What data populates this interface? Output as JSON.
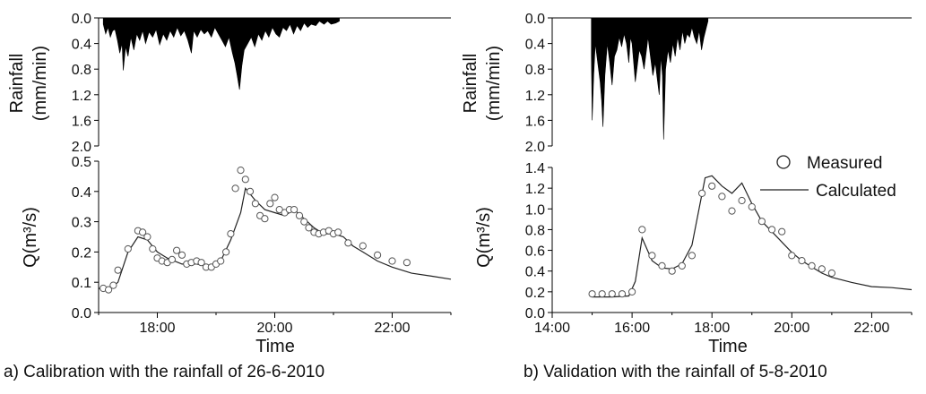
{
  "chart_data": [
    {
      "id": "a",
      "type": "hydrograph",
      "caption": "a) Calibration with the rainfall of 26-6-2010",
      "rainfall": {
        "ylabel_line1": "Rainfall",
        "ylabel_line2": "(mm/min)",
        "ylim": [
          2.0,
          0.0
        ],
        "yticks": [
          "0.0",
          "0.4",
          "0.8",
          "1.2",
          "1.6",
          "2.0"
        ],
        "series": [
          [
            17.08,
            0.1
          ],
          [
            17.12,
            0.25
          ],
          [
            17.16,
            0.15
          ],
          [
            17.2,
            0.3
          ],
          [
            17.24,
            0.2
          ],
          [
            17.28,
            0.18
          ],
          [
            17.32,
            0.35
          ],
          [
            17.36,
            0.55
          ],
          [
            17.4,
            0.4
          ],
          [
            17.42,
            0.82
          ],
          [
            17.46,
            0.45
          ],
          [
            17.5,
            0.6
          ],
          [
            17.55,
            0.3
          ],
          [
            17.6,
            0.5
          ],
          [
            17.65,
            0.25
          ],
          [
            17.7,
            0.35
          ],
          [
            17.75,
            0.2
          ],
          [
            17.8,
            0.4
          ],
          [
            17.86,
            0.22
          ],
          [
            17.92,
            0.3
          ],
          [
            17.98,
            0.18
          ],
          [
            18.04,
            0.42
          ],
          [
            18.1,
            0.25
          ],
          [
            18.16,
            0.35
          ],
          [
            18.22,
            0.2
          ],
          [
            18.28,
            0.3
          ],
          [
            18.34,
            0.15
          ],
          [
            18.4,
            0.28
          ],
          [
            18.46,
            0.2
          ],
          [
            18.52,
            0.35
          ],
          [
            18.58,
            0.55
          ],
          [
            18.62,
            0.2
          ],
          [
            18.68,
            0.3
          ],
          [
            18.74,
            0.18
          ],
          [
            18.8,
            0.25
          ],
          [
            18.86,
            0.2
          ],
          [
            18.92,
            0.3
          ],
          [
            18.98,
            0.15
          ],
          [
            19.04,
            0.25
          ],
          [
            19.1,
            0.35
          ],
          [
            19.16,
            0.45
          ],
          [
            19.22,
            0.3
          ],
          [
            19.28,
            0.55
          ],
          [
            19.32,
            0.7
          ],
          [
            19.36,
            0.9
          ],
          [
            19.4,
            1.12
          ],
          [
            19.44,
            0.75
          ],
          [
            19.48,
            0.5
          ],
          [
            19.54,
            0.4
          ],
          [
            19.6,
            0.3
          ],
          [
            19.66,
            0.45
          ],
          [
            19.72,
            0.25
          ],
          [
            19.78,
            0.35
          ],
          [
            19.84,
            0.2
          ],
          [
            19.9,
            0.3
          ],
          [
            19.96,
            0.15
          ],
          [
            20.02,
            0.25
          ],
          [
            20.08,
            0.3
          ],
          [
            20.14,
            0.15
          ],
          [
            20.2,
            0.2
          ],
          [
            20.26,
            0.1
          ],
          [
            20.32,
            0.25
          ],
          [
            20.38,
            0.12
          ],
          [
            20.44,
            0.2
          ],
          [
            20.5,
            0.08
          ],
          [
            20.56,
            0.15
          ],
          [
            20.62,
            0.1
          ],
          [
            20.7,
            0.12
          ],
          [
            20.76,
            0.05
          ],
          [
            20.84,
            0.1
          ],
          [
            20.9,
            0.05
          ],
          [
            20.96,
            0.1
          ],
          [
            21.04,
            0.08
          ],
          [
            21.1,
            0.05
          ]
        ]
      },
      "flow": {
        "ylabel": "Q(m³/s)",
        "xlabel": "Time",
        "xlim": [
          17.0,
          23.0
        ],
        "ylim": [
          0.0,
          0.5
        ],
        "xticks": [
          {
            "v": 18,
            "label": "18:00"
          },
          {
            "v": 20,
            "label": "20:00"
          },
          {
            "v": 22,
            "label": "22:00"
          }
        ],
        "yticks": [
          "0.0",
          "0.1",
          "0.2",
          "0.3",
          "0.4",
          "0.5"
        ],
        "measured": [
          [
            17.08,
            0.08
          ],
          [
            17.17,
            0.075
          ],
          [
            17.25,
            0.09
          ],
          [
            17.33,
            0.14
          ],
          [
            17.5,
            0.21
          ],
          [
            17.67,
            0.27
          ],
          [
            17.75,
            0.265
          ],
          [
            17.83,
            0.25
          ],
          [
            17.92,
            0.21
          ],
          [
            18.0,
            0.18
          ],
          [
            18.08,
            0.17
          ],
          [
            18.17,
            0.165
          ],
          [
            18.25,
            0.175
          ],
          [
            18.33,
            0.205
          ],
          [
            18.42,
            0.19
          ],
          [
            18.5,
            0.16
          ],
          [
            18.58,
            0.165
          ],
          [
            18.67,
            0.17
          ],
          [
            18.75,
            0.165
          ],
          [
            18.83,
            0.15
          ],
          [
            18.92,
            0.15
          ],
          [
            19.0,
            0.16
          ],
          [
            19.08,
            0.17
          ],
          [
            19.17,
            0.2
          ],
          [
            19.25,
            0.26
          ],
          [
            19.33,
            0.41
          ],
          [
            19.42,
            0.47
          ],
          [
            19.5,
            0.44
          ],
          [
            19.58,
            0.4
          ],
          [
            19.67,
            0.36
          ],
          [
            19.75,
            0.32
          ],
          [
            19.83,
            0.31
          ],
          [
            19.92,
            0.36
          ],
          [
            20.0,
            0.38
          ],
          [
            20.08,
            0.34
          ],
          [
            20.17,
            0.33
          ],
          [
            20.25,
            0.34
          ],
          [
            20.33,
            0.34
          ],
          [
            20.42,
            0.32
          ],
          [
            20.5,
            0.3
          ],
          [
            20.58,
            0.28
          ],
          [
            20.67,
            0.265
          ],
          [
            20.75,
            0.26
          ],
          [
            20.83,
            0.265
          ],
          [
            20.92,
            0.27
          ],
          [
            21.0,
            0.26
          ],
          [
            21.08,
            0.265
          ],
          [
            21.25,
            0.23
          ],
          [
            21.5,
            0.22
          ],
          [
            21.75,
            0.19
          ],
          [
            22.0,
            0.17
          ],
          [
            22.25,
            0.165
          ]
        ],
        "calculated": [
          [
            17.0,
            0.08
          ],
          [
            17.17,
            0.075
          ],
          [
            17.33,
            0.1
          ],
          [
            17.5,
            0.2
          ],
          [
            17.67,
            0.25
          ],
          [
            17.83,
            0.24
          ],
          [
            18.0,
            0.2
          ],
          [
            18.17,
            0.18
          ],
          [
            18.42,
            0.16
          ],
          [
            18.67,
            0.16
          ],
          [
            18.92,
            0.15
          ],
          [
            19.08,
            0.17
          ],
          [
            19.25,
            0.24
          ],
          [
            19.42,
            0.33
          ],
          [
            19.5,
            0.41
          ],
          [
            19.67,
            0.37
          ],
          [
            19.83,
            0.34
          ],
          [
            20.0,
            0.33
          ],
          [
            20.17,
            0.32
          ],
          [
            20.33,
            0.34
          ],
          [
            20.5,
            0.31
          ],
          [
            20.67,
            0.28
          ],
          [
            20.83,
            0.26
          ],
          [
            21.0,
            0.26
          ],
          [
            21.17,
            0.25
          ],
          [
            21.33,
            0.22
          ],
          [
            21.5,
            0.2
          ],
          [
            21.75,
            0.17
          ],
          [
            22.0,
            0.15
          ],
          [
            22.33,
            0.13
          ],
          [
            22.67,
            0.12
          ],
          [
            23.0,
            0.11
          ]
        ]
      }
    },
    {
      "id": "b",
      "type": "hydrograph",
      "caption": "b) Validation with the rainfall of 5-8-2010",
      "rainfall": {
        "ylabel_line1": "Rainfall",
        "ylabel_line2": "(mm/min)",
        "ylim": [
          2.0,
          0.0
        ],
        "yticks": [
          "0.0",
          "0.4",
          "0.8",
          "1.2",
          "1.6",
          "2.0"
        ],
        "series": [
          [
            14.98,
            0.6
          ],
          [
            15.0,
            1.6
          ],
          [
            15.04,
            0.9
          ],
          [
            15.08,
            0.4
          ],
          [
            15.12,
            0.6
          ],
          [
            15.16,
            0.8
          ],
          [
            15.2,
            1.0
          ],
          [
            15.24,
            1.3
          ],
          [
            15.27,
            1.7
          ],
          [
            15.32,
            0.9
          ],
          [
            15.38,
            0.4
          ],
          [
            15.44,
            0.7
          ],
          [
            15.5,
            1.05
          ],
          [
            15.56,
            0.6
          ],
          [
            15.62,
            0.5
          ],
          [
            15.68,
            0.3
          ],
          [
            15.74,
            0.45
          ],
          [
            15.8,
            0.25
          ],
          [
            15.86,
            0.4
          ],
          [
            15.92,
            0.7
          ],
          [
            15.96,
            0.3
          ],
          [
            16.0,
            0.4
          ],
          [
            16.04,
            0.7
          ],
          [
            16.08,
            1.0
          ],
          [
            16.12,
            0.8
          ],
          [
            16.18,
            0.5
          ],
          [
            16.24,
            0.6
          ],
          [
            16.3,
            0.8
          ],
          [
            16.36,
            0.5
          ],
          [
            16.4,
            0.3
          ],
          [
            16.46,
            0.6
          ],
          [
            16.52,
            0.9
          ],
          [
            16.58,
            0.7
          ],
          [
            16.64,
            1.0
          ],
          [
            16.68,
            1.2
          ],
          [
            16.72,
            0.6
          ],
          [
            16.76,
            0.9
          ],
          [
            16.79,
            1.9
          ],
          [
            16.84,
            0.8
          ],
          [
            16.9,
            0.5
          ],
          [
            16.96,
            0.7
          ],
          [
            17.02,
            0.4
          ],
          [
            17.08,
            0.6
          ],
          [
            17.14,
            0.3
          ],
          [
            17.2,
            0.5
          ],
          [
            17.26,
            0.2
          ],
          [
            17.32,
            0.4
          ],
          [
            17.38,
            0.25
          ],
          [
            17.44,
            0.3
          ],
          [
            17.5,
            0.15
          ],
          [
            17.56,
            0.3
          ],
          [
            17.62,
            0.4
          ],
          [
            17.68,
            0.2
          ],
          [
            17.74,
            0.5
          ],
          [
            17.8,
            0.3
          ],
          [
            17.86,
            0.15
          ],
          [
            17.9,
            0.05
          ]
        ]
      },
      "flow": {
        "ylabel": "Q(m³/s)",
        "xlabel": "Time",
        "xlim": [
          14.0,
          23.0
        ],
        "ylim": [
          0.0,
          1.4
        ],
        "xticks": [
          {
            "v": 14,
            "label": "14:00"
          },
          {
            "v": 16,
            "label": "16:00"
          },
          {
            "v": 18,
            "label": "18:00"
          },
          {
            "v": 20,
            "label": "20:00"
          },
          {
            "v": 22,
            "label": "22:00"
          }
        ],
        "yticks": [
          "0.0",
          "0.2",
          "0.4",
          "0.6",
          "0.8",
          "1.0",
          "1.2",
          "1.4"
        ],
        "legend": {
          "measured": "Measured",
          "calculated": "Calculated"
        },
        "measured": [
          [
            15.0,
            0.18
          ],
          [
            15.25,
            0.18
          ],
          [
            15.5,
            0.18
          ],
          [
            15.75,
            0.18
          ],
          [
            16.0,
            0.2
          ],
          [
            16.25,
            0.8
          ],
          [
            16.5,
            0.55
          ],
          [
            16.75,
            0.45
          ],
          [
            17.0,
            0.4
          ],
          [
            17.25,
            0.45
          ],
          [
            17.5,
            0.55
          ],
          [
            17.75,
            1.15
          ],
          [
            18.0,
            1.22
          ],
          [
            18.25,
            1.12
          ],
          [
            18.5,
            0.98
          ],
          [
            18.75,
            1.08
          ],
          [
            19.0,
            1.02
          ],
          [
            19.25,
            0.88
          ],
          [
            19.5,
            0.8
          ],
          [
            19.75,
            0.78
          ],
          [
            20.0,
            0.55
          ],
          [
            20.25,
            0.5
          ],
          [
            20.5,
            0.45
          ],
          [
            20.75,
            0.42
          ],
          [
            21.0,
            0.38
          ]
        ],
        "calculated": [
          [
            15.0,
            0.15
          ],
          [
            15.5,
            0.15
          ],
          [
            15.92,
            0.16
          ],
          [
            16.08,
            0.3
          ],
          [
            16.25,
            0.72
          ],
          [
            16.5,
            0.5
          ],
          [
            16.75,
            0.43
          ],
          [
            17.0,
            0.42
          ],
          [
            17.25,
            0.47
          ],
          [
            17.5,
            0.65
          ],
          [
            17.83,
            1.3
          ],
          [
            18.0,
            1.32
          ],
          [
            18.25,
            1.22
          ],
          [
            18.5,
            1.15
          ],
          [
            18.75,
            1.25
          ],
          [
            19.0,
            1.05
          ],
          [
            19.25,
            0.88
          ],
          [
            19.5,
            0.78
          ],
          [
            19.75,
            0.68
          ],
          [
            20.0,
            0.58
          ],
          [
            20.25,
            0.5
          ],
          [
            20.5,
            0.44
          ],
          [
            20.75,
            0.38
          ],
          [
            21.0,
            0.34
          ],
          [
            21.5,
            0.29
          ],
          [
            22.0,
            0.25
          ],
          [
            22.5,
            0.24
          ],
          [
            23.0,
            0.22
          ]
        ]
      }
    }
  ]
}
